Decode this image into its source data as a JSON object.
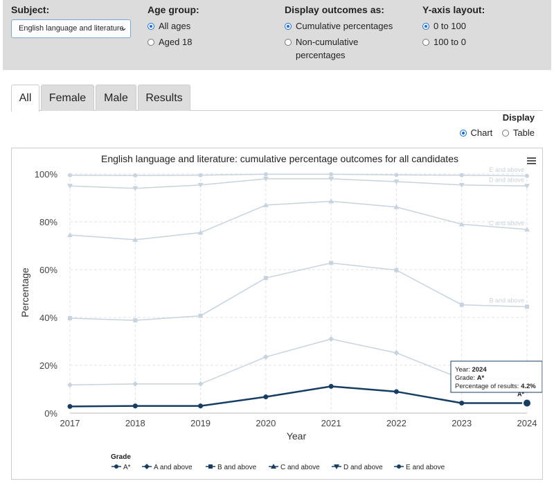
{
  "filters": {
    "subject": {
      "heading": "Subject:",
      "selected": "English language and literature"
    },
    "age": {
      "heading": "Age group:",
      "options": [
        {
          "label": "All ages",
          "checked": true
        },
        {
          "label": "Aged 18",
          "checked": false
        }
      ]
    },
    "outcomes": {
      "heading": "Display outcomes as:",
      "options": [
        {
          "label": "Cumulative percentages",
          "checked": true
        },
        {
          "label": "Non-cumulative",
          "label2": "percentages",
          "checked": false
        }
      ]
    },
    "yaxis": {
      "heading": "Y-axis layout:",
      "options": [
        {
          "label": "0 to 100",
          "checked": true
        },
        {
          "label": "100 to 0",
          "checked": false
        }
      ]
    }
  },
  "tabs": [
    {
      "label": "All",
      "active": true
    },
    {
      "label": "Female"
    },
    {
      "label": "Male"
    },
    {
      "label": "Results"
    }
  ],
  "display": {
    "heading": "Display",
    "chart_label": "Chart",
    "table_label": "Table",
    "selected": "Chart"
  },
  "chart_data": {
    "type": "line",
    "title": "English language and literature: cumulative percentage outcomes for all candidates",
    "xlabel": "Year",
    "ylabel": "Percentage",
    "x": [
      "2017",
      "2018",
      "2019",
      "2020",
      "2021",
      "2022",
      "2023",
      "2024"
    ],
    "ylim": [
      0,
      100
    ],
    "yticks": [
      "0%",
      "20%",
      "40%",
      "60%",
      "80%",
      "100%"
    ],
    "grid": true,
    "legend_title": "Grade",
    "legend_position": "bottom",
    "series": [
      {
        "name": "A*",
        "values": [
          2.8,
          3.0,
          3.0,
          6.8,
          11.2,
          9.0,
          4.2,
          4.2
        ],
        "highlighted": true
      },
      {
        "name": "A and above",
        "values": [
          11.8,
          12.2,
          12.2,
          23.5,
          31.0,
          25.2,
          14.3,
          14.4
        ]
      },
      {
        "name": "B and above",
        "values": [
          39.7,
          38.8,
          40.7,
          56.5,
          62.8,
          59.8,
          45.3,
          44.5
        ]
      },
      {
        "name": "C and above",
        "values": [
          74.5,
          72.5,
          75.5,
          87.0,
          88.6,
          86.2,
          79.0,
          76.8
        ]
      },
      {
        "name": "D and above",
        "values": [
          95.0,
          94.0,
          95.4,
          98.0,
          98.0,
          96.8,
          95.4,
          95.0
        ]
      },
      {
        "name": "E and above",
        "values": [
          99.5,
          99.4,
          99.5,
          99.9,
          99.9,
          99.6,
          99.5,
          99.2
        ]
      }
    ],
    "line_end_labels": [
      "E and above",
      "D and above",
      "C and above",
      "B and above"
    ],
    "point_label": "A*",
    "tooltip": {
      "year_label": "Year:",
      "year": "2024",
      "grade_label": "Grade:",
      "grade": "A*",
      "pct_label": "Percentage of results:",
      "pct": "4.2%"
    },
    "colors": {
      "highlight": "#173d63",
      "faded": "#c7d3de",
      "faded_text": "#c9d2da"
    }
  }
}
